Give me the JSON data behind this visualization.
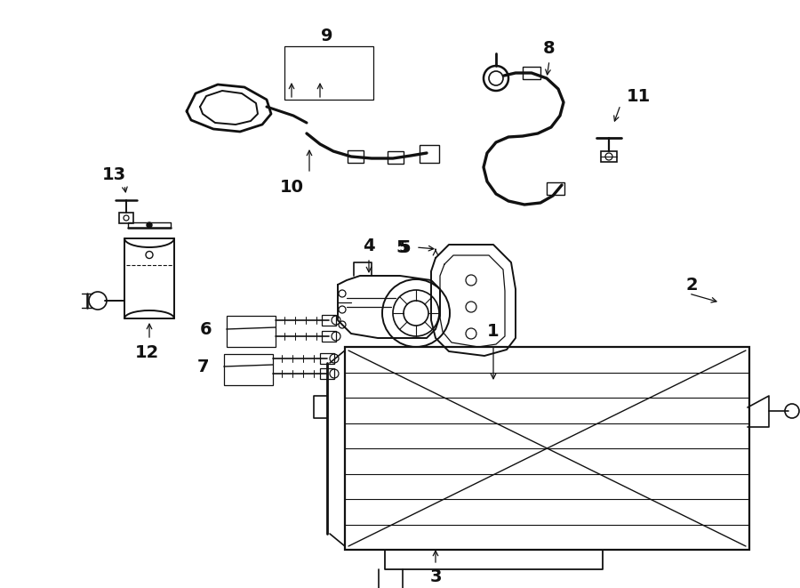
{
  "bg": "#ffffff",
  "lc": "#111111",
  "lw": 1.4,
  "fig_w": 9.0,
  "fig_h": 6.61,
  "dpi": 100
}
